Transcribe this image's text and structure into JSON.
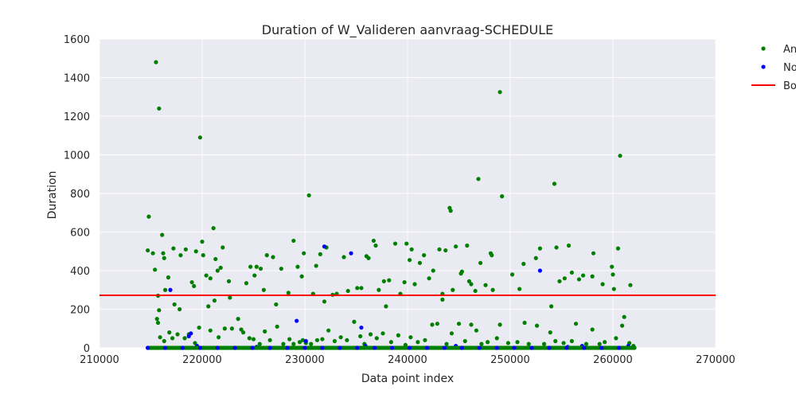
{
  "chart_data": {
    "type": "scatter",
    "title": "Duration of W_Valideren aanvraag-SCHEDULE",
    "xlabel": "Data point index",
    "ylabel": "Duration",
    "xlim": [
      210000,
      270000
    ],
    "ylim": [
      0,
      1600
    ],
    "xticks": [
      "210000",
      "220000",
      "230000",
      "240000",
      "250000",
      "260000",
      "270000"
    ],
    "yticks": [
      "0",
      "200",
      "400",
      "600",
      "800",
      "1000",
      "1200",
      "1400",
      "1600"
    ],
    "grid": true,
    "legend_position": "outside-top-right",
    "legend": [
      {
        "label": "An",
        "marker": "dot",
        "color": "#008000"
      },
      {
        "label": "No",
        "marker": "dot",
        "color": "#0000ff"
      },
      {
        "label": "Bo",
        "marker": "line",
        "color": "#ff0000"
      }
    ],
    "threshold": {
      "name": "Bo",
      "value": 272,
      "color": "#ff0000"
    },
    "series": [
      {
        "name": "An",
        "color": "#008000",
        "points": [
          [
            214700,
            505
          ],
          [
            214800,
            680
          ],
          [
            215200,
            490
          ],
          [
            215400,
            405
          ],
          [
            215500,
            1480
          ],
          [
            215600,
            150
          ],
          [
            215700,
            270
          ],
          [
            215800,
            1240
          ],
          [
            215800,
            195
          ],
          [
            215700,
            130
          ],
          [
            216100,
            585
          ],
          [
            216200,
            490
          ],
          [
            216300,
            465
          ],
          [
            216400,
            300
          ],
          [
            216700,
            365
          ],
          [
            217200,
            515
          ],
          [
            217300,
            225
          ],
          [
            217800,
            200
          ],
          [
            217900,
            480
          ],
          [
            218400,
            510
          ],
          [
            219000,
            340
          ],
          [
            219200,
            320
          ],
          [
            219400,
            500
          ],
          [
            219800,
            1090
          ],
          [
            220000,
            550
          ],
          [
            220100,
            480
          ],
          [
            220400,
            375
          ],
          [
            220600,
            215
          ],
          [
            220800,
            360
          ],
          [
            221100,
            620
          ],
          [
            221200,
            245
          ],
          [
            221300,
            460
          ],
          [
            221500,
            400
          ],
          [
            221800,
            415
          ],
          [
            222000,
            520
          ],
          [
            222600,
            345
          ],
          [
            222700,
            260
          ],
          [
            223800,
            95
          ],
          [
            224300,
            335
          ],
          [
            224700,
            420
          ],
          [
            225100,
            375
          ],
          [
            225300,
            420
          ],
          [
            225700,
            410
          ],
          [
            226000,
            300
          ],
          [
            226300,
            480
          ],
          [
            226900,
            470
          ],
          [
            227200,
            225
          ],
          [
            227700,
            410
          ],
          [
            228400,
            285
          ],
          [
            228900,
            555
          ],
          [
            229300,
            420
          ],
          [
            229700,
            370
          ],
          [
            229900,
            490
          ],
          [
            230400,
            790
          ],
          [
            230800,
            280
          ],
          [
            231100,
            425
          ],
          [
            231500,
            485
          ],
          [
            231900,
            240
          ],
          [
            232100,
            520
          ],
          [
            232700,
            275
          ],
          [
            233100,
            280
          ],
          [
            233800,
            470
          ],
          [
            234200,
            295
          ],
          [
            235100,
            310
          ],
          [
            235500,
            310
          ],
          [
            236000,
            475
          ],
          [
            236200,
            465
          ],
          [
            236700,
            555
          ],
          [
            236900,
            530
          ],
          [
            237200,
            300
          ],
          [
            237700,
            345
          ],
          [
            237900,
            215
          ],
          [
            238200,
            350
          ],
          [
            238800,
            540
          ],
          [
            239300,
            280
          ],
          [
            239700,
            340
          ],
          [
            239900,
            540
          ],
          [
            240200,
            455
          ],
          [
            240400,
            510
          ],
          [
            240700,
            330
          ],
          [
            241200,
            440
          ],
          [
            241600,
            480
          ],
          [
            242100,
            360
          ],
          [
            242500,
            400
          ],
          [
            243100,
            510
          ],
          [
            243400,
            280
          ],
          [
            243700,
            505
          ],
          [
            244100,
            725
          ],
          [
            244200,
            710
          ],
          [
            244400,
            300
          ],
          [
            244700,
            525
          ],
          [
            245200,
            385
          ],
          [
            245300,
            395
          ],
          [
            245800,
            530
          ],
          [
            246000,
            345
          ],
          [
            246200,
            330
          ],
          [
            246600,
            295
          ],
          [
            246900,
            875
          ],
          [
            247100,
            440
          ],
          [
            247600,
            325
          ],
          [
            248100,
            490
          ],
          [
            248200,
            480
          ],
          [
            248300,
            300
          ],
          [
            249000,
            1325
          ],
          [
            249200,
            785
          ],
          [
            250200,
            380
          ],
          [
            250900,
            305
          ],
          [
            251300,
            435
          ],
          [
            252500,
            465
          ],
          [
            252900,
            515
          ],
          [
            254000,
            215
          ],
          [
            254300,
            850
          ],
          [
            254500,
            520
          ],
          [
            254800,
            345
          ],
          [
            255300,
            360
          ],
          [
            255700,
            530
          ],
          [
            256000,
            390
          ],
          [
            256700,
            355
          ],
          [
            257100,
            375
          ],
          [
            258000,
            370
          ],
          [
            258100,
            490
          ],
          [
            259000,
            330
          ],
          [
            259900,
            420
          ],
          [
            260000,
            380
          ],
          [
            260100,
            305
          ],
          [
            260500,
            515
          ],
          [
            260700,
            995
          ],
          [
            261100,
            160
          ],
          [
            261700,
            325
          ],
          [
            215900,
            55
          ],
          [
            216300,
            35
          ],
          [
            216800,
            80
          ],
          [
            217100,
            50
          ],
          [
            217600,
            70
          ],
          [
            218300,
            50
          ],
          [
            218700,
            70
          ],
          [
            219300,
            25
          ],
          [
            219700,
            105
          ],
          [
            220800,
            90
          ],
          [
            221600,
            55
          ],
          [
            222200,
            100
          ],
          [
            222900,
            100
          ],
          [
            223500,
            150
          ],
          [
            224000,
            80
          ],
          [
            224600,
            50
          ],
          [
            225000,
            45
          ],
          [
            225600,
            20
          ],
          [
            226100,
            85
          ],
          [
            226600,
            40
          ],
          [
            227300,
            110
          ],
          [
            227900,
            20
          ],
          [
            228500,
            45
          ],
          [
            228900,
            20
          ],
          [
            229500,
            30
          ],
          [
            229800,
            40
          ],
          [
            230100,
            25
          ],
          [
            230600,
            20
          ],
          [
            231200,
            40
          ],
          [
            231700,
            45
          ],
          [
            232300,
            90
          ],
          [
            232900,
            35
          ],
          [
            233500,
            55
          ],
          [
            234100,
            40
          ],
          [
            234800,
            135
          ],
          [
            235400,
            60
          ],
          [
            235800,
            20
          ],
          [
            236400,
            70
          ],
          [
            237000,
            50
          ],
          [
            237600,
            75
          ],
          [
            238400,
            30
          ],
          [
            239100,
            65
          ],
          [
            239800,
            15
          ],
          [
            240300,
            55
          ],
          [
            241000,
            30
          ],
          [
            241700,
            40
          ],
          [
            242400,
            120
          ],
          [
            242900,
            125
          ],
          [
            243400,
            250
          ],
          [
            243800,
            20
          ],
          [
            244300,
            75
          ],
          [
            245000,
            125
          ],
          [
            245600,
            35
          ],
          [
            246200,
            120
          ],
          [
            246700,
            90
          ],
          [
            247200,
            20
          ],
          [
            247800,
            30
          ],
          [
            248700,
            50
          ],
          [
            249000,
            120
          ],
          [
            249800,
            25
          ],
          [
            250700,
            30
          ],
          [
            251400,
            130
          ],
          [
            251800,
            20
          ],
          [
            252600,
            115
          ],
          [
            253300,
            20
          ],
          [
            253900,
            80
          ],
          [
            254400,
            35
          ],
          [
            255200,
            25
          ],
          [
            256000,
            35
          ],
          [
            256400,
            125
          ],
          [
            257400,
            20
          ],
          [
            258000,
            95
          ],
          [
            258700,
            20
          ],
          [
            259200,
            30
          ],
          [
            260300,
            50
          ],
          [
            260900,
            115
          ],
          [
            261600,
            25
          ],
          [
            262000,
            10
          ]
        ]
      },
      {
        "name": "No",
        "color": "#0000ff",
        "points": [
          [
            216900,
            300
          ],
          [
            218700,
            60
          ],
          [
            218900,
            75
          ],
          [
            219500,
            10
          ],
          [
            225300,
            5
          ],
          [
            229200,
            140
          ],
          [
            230100,
            35
          ],
          [
            231900,
            525
          ],
          [
            234500,
            490
          ],
          [
            235500,
            105
          ],
          [
            235900,
            10
          ],
          [
            244700,
            10
          ],
          [
            252900,
            400
          ],
          [
            255600,
            5
          ],
          [
            257000,
            10
          ],
          [
            261500,
            10
          ]
        ]
      }
    ]
  }
}
